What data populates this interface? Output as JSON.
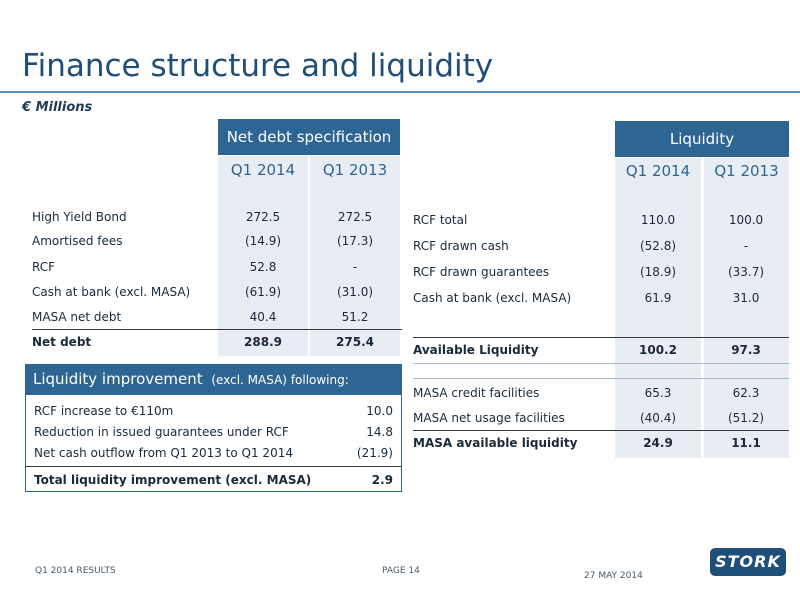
{
  "title": "Finance structure and liquidity",
  "subtitle": "€ Millions",
  "net_debt": {
    "header": "Net debt specification",
    "col1": "Q1 2014",
    "col2": "Q1 2013",
    "rows": [
      {
        "label": "High Yield Bond",
        "q1_2014": "272.5",
        "q1_2013": "272.5"
      },
      {
        "label": "Amortised fees",
        "q1_2014": "(14.9)",
        "q1_2013": "(17.3)"
      },
      {
        "label": "RCF",
        "q1_2014": "52.8",
        "q1_2013": "-"
      },
      {
        "label": "Cash at bank (excl. MASA)",
        "q1_2014": "(61.9)",
        "q1_2013": "(31.0)"
      },
      {
        "label": "MASA net debt",
        "q1_2014": "40.4",
        "q1_2013": "51.2"
      }
    ],
    "total": {
      "label": "Net debt",
      "q1_2014": "288.9",
      "q1_2013": "275.4"
    }
  },
  "liquidity": {
    "header": "Liquidity",
    "col1": "Q1 2014",
    "col2": "Q1 2013",
    "rows": [
      {
        "label": "RCF total",
        "q1_2014": "110.0",
        "q1_2013": "100.0"
      },
      {
        "label": "RCF drawn cash",
        "q1_2014": "(52.8)",
        "q1_2013": "-"
      },
      {
        "label": "RCF drawn guarantees",
        "q1_2014": "(18.9)",
        "q1_2013": "(33.7)"
      },
      {
        "label": "Cash at bank (excl. MASA)",
        "q1_2014": "61.9",
        "q1_2013": "31.0"
      }
    ],
    "available": {
      "label": "Available Liquidity",
      "q1_2014": "100.2",
      "q1_2013": "97.3"
    },
    "masa_rows": [
      {
        "label": "MASA credit facilities",
        "q1_2014": "65.3",
        "q1_2013": "62.3"
      },
      {
        "label": "MASA net usage facilities",
        "q1_2014": "(40.4)",
        "q1_2013": "(51.2)"
      }
    ],
    "masa_total": {
      "label": "MASA available liquidity",
      "q1_2014": "24.9",
      "q1_2013": "11.1"
    }
  },
  "improvement": {
    "header": "Liquidity improvement",
    "header_small": "(excl. MASA) following:",
    "rows": [
      {
        "label": "RCF increase to €110m",
        "value": "10.0"
      },
      {
        "label": "Reduction in issued guarantees under RCF",
        "value": "14.8"
      },
      {
        "label": "Net cash outflow from Q1 2013 to Q1 2014",
        "value": "(21.9)"
      }
    ],
    "total": {
      "label": "Total liquidity improvement (excl. MASA)",
      "value": "2.9"
    }
  },
  "footer": {
    "left": "Q1 2014 RESULTS",
    "page": "PAGE 14",
    "date": "27 MAY 2014",
    "logo": "STORK"
  },
  "colors": {
    "accent": "#2e6693",
    "title": "#1f4e79",
    "column_bg": "#e7edf3"
  }
}
